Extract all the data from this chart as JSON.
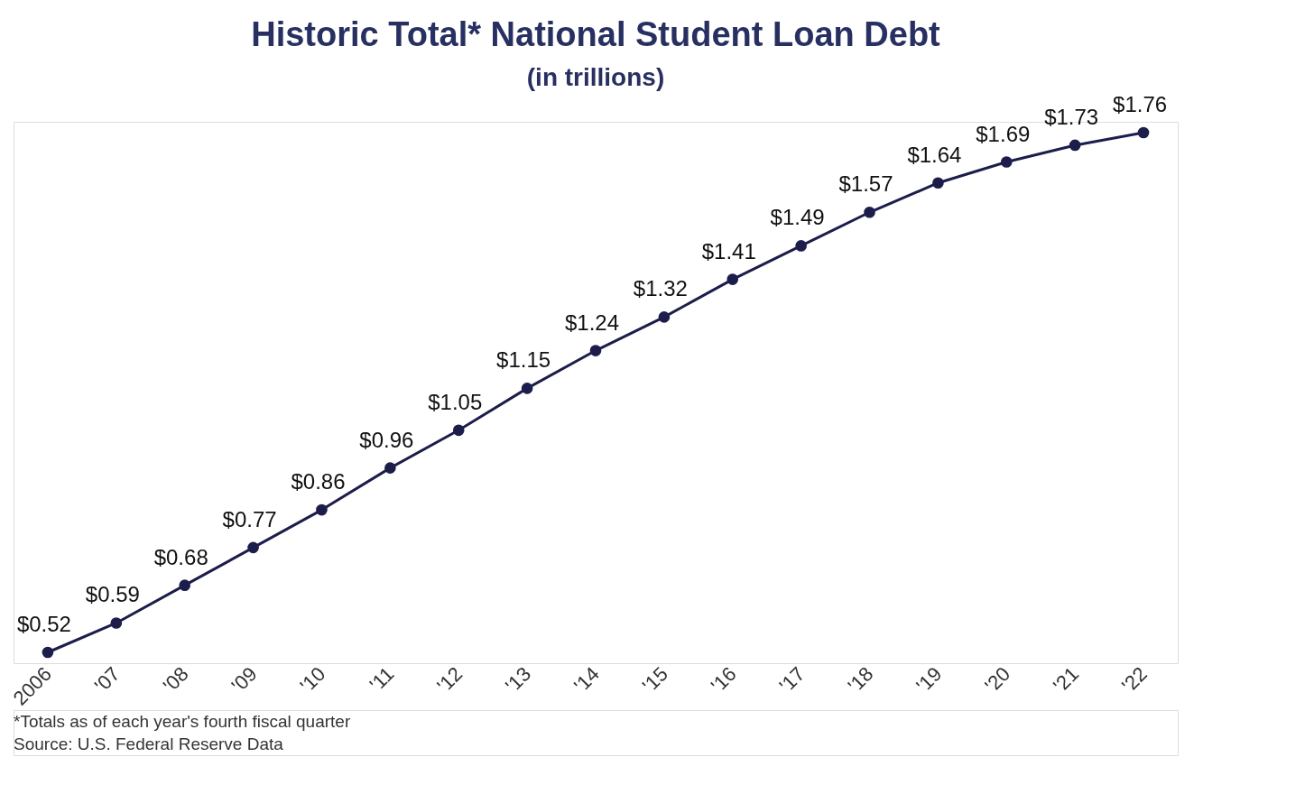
{
  "chart_data": {
    "type": "line",
    "title": "Historic Total* National Student Loan Debt",
    "subtitle": "(in trillions)",
    "categories": [
      "2006",
      "'07",
      "'08",
      "'09",
      "'10",
      "'11",
      "'12",
      "'13",
      "'14",
      "'15",
      "'16",
      "'17",
      "'18",
      "'19",
      "'20",
      "'21",
      "'22"
    ],
    "series": [
      {
        "color": "#1c1d4b",
        "values": [
          0.52,
          0.59,
          0.68,
          0.77,
          0.86,
          0.96,
          1.05,
          1.15,
          1.24,
          1.32,
          1.41,
          1.49,
          1.57,
          1.64,
          1.69,
          1.73,
          1.76
        ],
        "value_labels": [
          "$0.52",
          "$0.59",
          "$0.68",
          "$0.77",
          "$0.86",
          "$0.96",
          "$1.05",
          "$1.15",
          "$1.24",
          "$1.32",
          "$1.41",
          "$1.49",
          "$1.57",
          "$1.64",
          "$1.69",
          "$1.73",
          "$1.76"
        ]
      }
    ],
    "marker": "circle",
    "line_style": "solid",
    "grid": false,
    "annotations": [
      "*Totals as of each year's fourth fiscal quarter",
      "Source: U.S. Federal Reserve Data"
    ]
  }
}
